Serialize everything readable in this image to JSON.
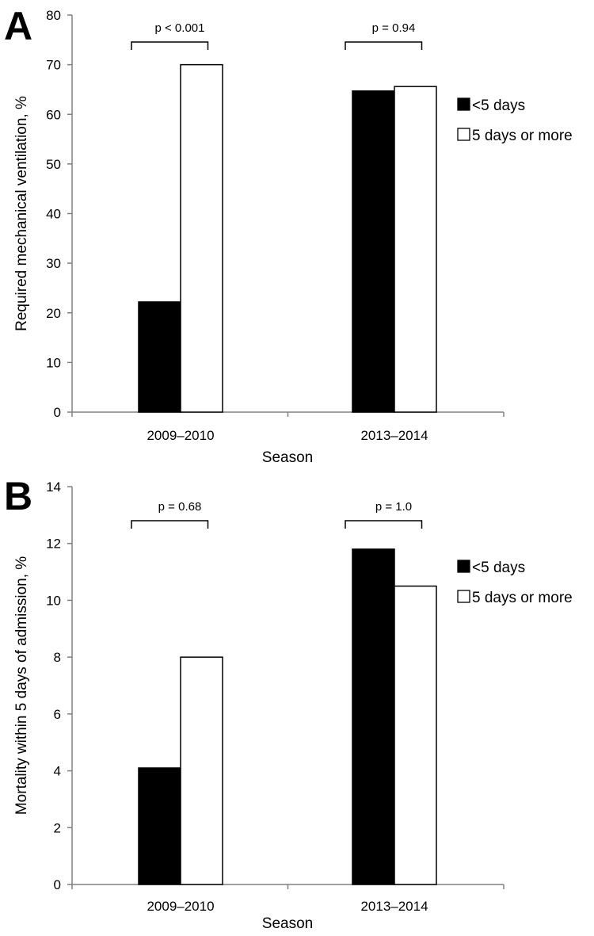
{
  "chart_data": [
    {
      "type": "bar",
      "panel_label": "A",
      "categories": [
        "2009–2010",
        "2013–2014"
      ],
      "series": [
        {
          "name": "<5 days",
          "values": [
            22.2,
            64.7
          ],
          "fill": "#000000"
        },
        {
          "name": "5 days or more",
          "values": [
            70.0,
            65.6
          ],
          "fill": "#ffffff"
        }
      ],
      "xlabel": "Season",
      "ylabel": "Required mechanical ventilation, %",
      "ylim": [
        0,
        80
      ],
      "yticks": [
        0,
        10,
        20,
        30,
        40,
        50,
        60,
        70,
        80
      ],
      "annotations": [
        "p < 0.001",
        "p = 0.94"
      ],
      "legend": "right",
      "grid": false
    },
    {
      "type": "bar",
      "panel_label": "B",
      "categories": [
        "2009–2010",
        "2013–2014"
      ],
      "series": [
        {
          "name": "<5 days",
          "values": [
            4.1,
            11.8
          ],
          "fill": "#000000"
        },
        {
          "name": "5 days or more",
          "values": [
            8.0,
            10.5
          ],
          "fill": "#ffffff"
        }
      ],
      "xlabel": "Season",
      "ylabel": "Mortality within 5 days of admission, %",
      "ylim": [
        0,
        14
      ],
      "yticks": [
        0,
        2,
        4,
        6,
        8,
        10,
        12,
        14
      ],
      "annotations": [
        "p = 0.68",
        "p = 1.0"
      ],
      "legend": "right",
      "grid": false
    }
  ]
}
